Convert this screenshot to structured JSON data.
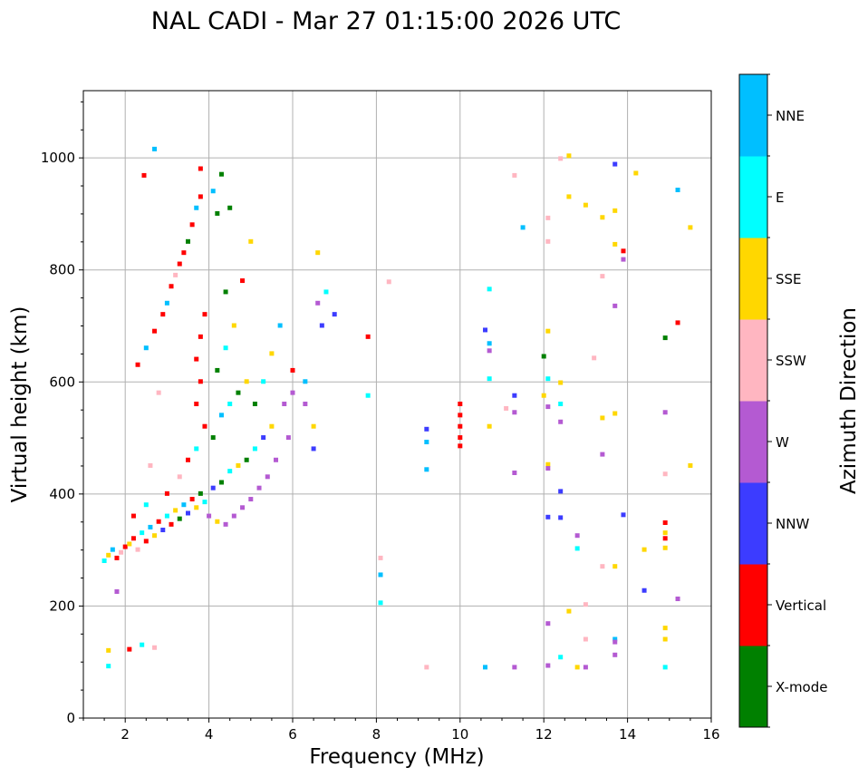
{
  "chart_data": {
    "type": "scatter",
    "title": "NAL CADI - Mar 27 01:15:00 2026 UTC",
    "xlabel": "Frequency (MHz)",
    "ylabel": "Virtual height (km)",
    "xlim": [
      1,
      16
    ],
    "ylim": [
      0,
      1120
    ],
    "xticks": [
      2,
      4,
      6,
      8,
      10,
      12,
      14,
      16
    ],
    "yticks": [
      0,
      200,
      400,
      600,
      800,
      1000
    ],
    "grid": true,
    "colorbar": {
      "label": "Azimuth Direction",
      "categories": [
        "X-mode",
        "Vertical",
        "NNW",
        "W",
        "SSW",
        "SSE",
        "E",
        "NNE"
      ],
      "colors": [
        "#008000",
        "#ff0000",
        "#3c3cff",
        "#b45ad2",
        "#ffb6c1",
        "#ffd700",
        "#00ffff",
        "#00bfff"
      ]
    },
    "points_format": [
      "frequency_mhz",
      "height_km",
      "direction_index"
    ],
    "points": [
      [
        1.5,
        280,
        6
      ],
      [
        1.6,
        290,
        5
      ],
      [
        1.7,
        300,
        7
      ],
      [
        1.8,
        285,
        1
      ],
      [
        1.9,
        295,
        4
      ],
      [
        2.0,
        305,
        1
      ],
      [
        2.1,
        310,
        5
      ],
      [
        2.2,
        320,
        1
      ],
      [
        2.3,
        300,
        4
      ],
      [
        2.4,
        330,
        6
      ],
      [
        2.5,
        315,
        1
      ],
      [
        2.6,
        340,
        7
      ],
      [
        2.7,
        325,
        5
      ],
      [
        2.8,
        350,
        1
      ],
      [
        2.9,
        335,
        2
      ],
      [
        3.0,
        360,
        6
      ],
      [
        3.1,
        345,
        1
      ],
      [
        3.2,
        370,
        5
      ],
      [
        3.3,
        355,
        0
      ],
      [
        3.4,
        380,
        7
      ],
      [
        3.5,
        365,
        2
      ],
      [
        3.6,
        390,
        1
      ],
      [
        3.7,
        375,
        5
      ],
      [
        3.8,
        400,
        0
      ],
      [
        3.9,
        385,
        6
      ],
      [
        4.0,
        360,
        3
      ],
      [
        4.1,
        410,
        2
      ],
      [
        4.2,
        350,
        5
      ],
      [
        4.3,
        420,
        0
      ],
      [
        4.4,
        345,
        3
      ],
      [
        4.5,
        440,
        6
      ],
      [
        4.6,
        360,
        3
      ],
      [
        4.7,
        450,
        5
      ],
      [
        4.8,
        375,
        3
      ],
      [
        4.9,
        460,
        0
      ],
      [
        5.0,
        390,
        3
      ],
      [
        5.1,
        480,
        6
      ],
      [
        5.2,
        410,
        3
      ],
      [
        5.3,
        500,
        2
      ],
      [
        5.4,
        430,
        3
      ],
      [
        5.5,
        520,
        5
      ],
      [
        5.6,
        460,
        3
      ],
      [
        5.8,
        560,
        3
      ],
      [
        5.9,
        500,
        3
      ],
      [
        6.0,
        580,
        3
      ],
      [
        6.0,
        620,
        1
      ],
      [
        2.2,
        360,
        1
      ],
      [
        2.5,
        380,
        6
      ],
      [
        3.0,
        400,
        1
      ],
      [
        3.3,
        430,
        4
      ],
      [
        3.5,
        460,
        1
      ],
      [
        3.7,
        480,
        6
      ],
      [
        3.9,
        520,
        1
      ],
      [
        4.1,
        500,
        0
      ],
      [
        4.3,
        540,
        7
      ],
      [
        4.5,
        560,
        6
      ],
      [
        4.7,
        580,
        0
      ],
      [
        4.9,
        600,
        5
      ],
      [
        5.1,
        560,
        0
      ],
      [
        5.3,
        600,
        6
      ],
      [
        5.5,
        650,
        5
      ],
      [
        5.7,
        700,
        7
      ],
      [
        4.2,
        620,
        0
      ],
      [
        4.4,
        660,
        6
      ],
      [
        4.6,
        700,
        5
      ],
      [
        4.4,
        760,
        0
      ],
      [
        4.8,
        780,
        1
      ],
      [
        5.0,
        850,
        5
      ],
      [
        2.3,
        630,
        1
      ],
      [
        2.5,
        660,
        7
      ],
      [
        2.7,
        690,
        1
      ],
      [
        2.9,
        720,
        1
      ],
      [
        3.0,
        740,
        7
      ],
      [
        3.1,
        770,
        1
      ],
      [
        3.2,
        790,
        4
      ],
      [
        3.3,
        810,
        1
      ],
      [
        3.4,
        830,
        1
      ],
      [
        3.5,
        850,
        0
      ],
      [
        3.6,
        880,
        1
      ],
      [
        3.7,
        910,
        7
      ],
      [
        3.8,
        930,
        1
      ],
      [
        3.8,
        980,
        1
      ],
      [
        4.1,
        940,
        7
      ],
      [
        4.3,
        970,
        0
      ],
      [
        4.2,
        900,
        0
      ],
      [
        4.5,
        910,
        0
      ],
      [
        3.7,
        560,
        1
      ],
      [
        3.8,
        600,
        1
      ],
      [
        3.7,
        640,
        1
      ],
      [
        3.8,
        680,
        1
      ],
      [
        3.9,
        720,
        1
      ],
      [
        2.7,
        1015,
        7
      ],
      [
        2.45,
        968,
        1
      ],
      [
        2.8,
        580,
        4
      ],
      [
        2.6,
        450,
        4
      ],
      [
        2.7,
        125,
        4
      ],
      [
        1.6,
        120,
        5
      ],
      [
        1.6,
        92,
        6
      ],
      [
        1.8,
        225,
        3
      ],
      [
        2.1,
        122,
        1
      ],
      [
        2.4,
        130,
        6
      ],
      [
        6.3,
        560,
        3
      ],
      [
        6.3,
        600,
        7
      ],
      [
        6.5,
        520,
        5
      ],
      [
        6.6,
        740,
        3
      ],
      [
        6.7,
        700,
        2
      ],
      [
        6.8,
        760,
        6
      ],
      [
        7.0,
        720,
        2
      ],
      [
        6.5,
        480,
        2
      ],
      [
        6.6,
        830,
        5
      ],
      [
        7.8,
        680,
        1
      ],
      [
        7.8,
        575,
        6
      ],
      [
        8.3,
        778,
        4
      ],
      [
        8.1,
        285,
        4
      ],
      [
        8.1,
        255,
        7
      ],
      [
        8.1,
        205,
        6
      ],
      [
        9.2,
        515,
        2
      ],
      [
        9.2,
        492,
        7
      ],
      [
        9.2,
        443,
        7
      ],
      [
        9.2,
        90,
        4
      ],
      [
        10.0,
        560,
        1
      ],
      [
        10.0,
        540,
        1
      ],
      [
        10.0,
        520,
        1
      ],
      [
        10.0,
        500,
        1
      ],
      [
        10.0,
        485,
        1
      ],
      [
        10.6,
        692,
        2
      ],
      [
        10.7,
        668,
        7
      ],
      [
        10.7,
        655,
        3
      ],
      [
        10.7,
        765,
        6
      ],
      [
        10.7,
        605,
        6
      ],
      [
        10.7,
        520,
        5
      ],
      [
        10.6,
        90,
        7
      ],
      [
        11.1,
        552,
        4
      ],
      [
        11.3,
        575,
        2
      ],
      [
        11.3,
        545,
        3
      ],
      [
        11.3,
        437,
        3
      ],
      [
        11.3,
        90,
        3
      ],
      [
        11.3,
        968,
        4
      ],
      [
        11.5,
        875,
        7
      ],
      [
        12.0,
        645,
        0
      ],
      [
        12.0,
        575,
        5
      ],
      [
        12.1,
        892,
        4
      ],
      [
        12.1,
        850,
        4
      ],
      [
        12.1,
        690,
        5
      ],
      [
        12.1,
        605,
        6
      ],
      [
        12.1,
        555,
        3
      ],
      [
        12.1,
        452,
        5
      ],
      [
        12.1,
        445,
        3
      ],
      [
        12.1,
        358,
        2
      ],
      [
        12.1,
        168,
        3
      ],
      [
        12.1,
        93,
        3
      ],
      [
        12.4,
        998,
        4
      ],
      [
        12.6,
        1003,
        5
      ],
      [
        12.6,
        930,
        5
      ],
      [
        12.4,
        598,
        5
      ],
      [
        12.4,
        560,
        6
      ],
      [
        12.4,
        528,
        3
      ],
      [
        12.4,
        404,
        2
      ],
      [
        12.4,
        357,
        2
      ],
      [
        12.8,
        325,
        3
      ],
      [
        12.8,
        302,
        6
      ],
      [
        12.6,
        190,
        5
      ],
      [
        12.4,
        108,
        6
      ],
      [
        13.0,
        915,
        5
      ],
      [
        13.2,
        642,
        4
      ],
      [
        13.0,
        202,
        4
      ],
      [
        13.0,
        140,
        4
      ],
      [
        12.8,
        90,
        5
      ],
      [
        13.0,
        90,
        3
      ],
      [
        13.4,
        893,
        5
      ],
      [
        13.4,
        788,
        4
      ],
      [
        13.4,
        535,
        5
      ],
      [
        13.4,
        470,
        3
      ],
      [
        13.4,
        270,
        4
      ],
      [
        13.7,
        988,
        2
      ],
      [
        13.7,
        905,
        5
      ],
      [
        13.7,
        845,
        5
      ],
      [
        13.7,
        735,
        3
      ],
      [
        13.7,
        543,
        5
      ],
      [
        13.7,
        270,
        5
      ],
      [
        13.7,
        140,
        7
      ],
      [
        13.7,
        135,
        3
      ],
      [
        13.7,
        112,
        3
      ],
      [
        13.9,
        833,
        1
      ],
      [
        13.9,
        818,
        3
      ],
      [
        13.9,
        362,
        2
      ],
      [
        14.2,
        972,
        5
      ],
      [
        14.4,
        300,
        5
      ],
      [
        14.4,
        227,
        2
      ],
      [
        14.9,
        678,
        0
      ],
      [
        14.9,
        545,
        3
      ],
      [
        14.9,
        435,
        4
      ],
      [
        14.9,
        348,
        1
      ],
      [
        14.9,
        330,
        5
      ],
      [
        14.9,
        320,
        1
      ],
      [
        14.9,
        303,
        5
      ],
      [
        14.9,
        160,
        5
      ],
      [
        14.9,
        140,
        5
      ],
      [
        14.9,
        90,
        6
      ],
      [
        15.2,
        942,
        7
      ],
      [
        15.2,
        705,
        1
      ],
      [
        15.2,
        212,
        3
      ],
      [
        15.5,
        875,
        5
      ],
      [
        15.5,
        450,
        5
      ]
    ]
  }
}
